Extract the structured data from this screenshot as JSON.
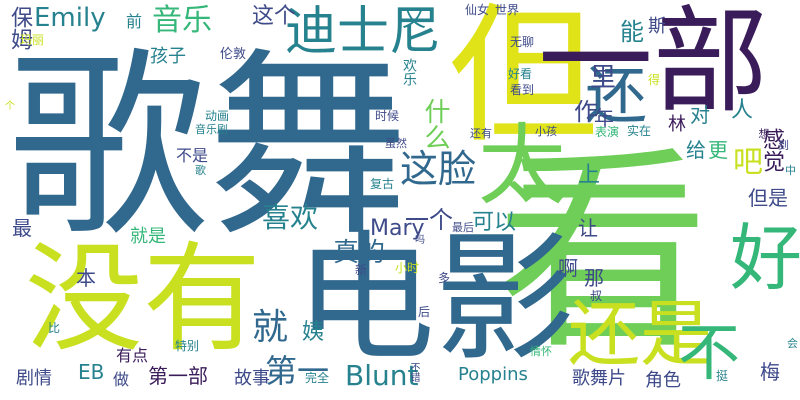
{
  "palette": {
    "purple": "#3b1c5a",
    "indigo": "#3e4a89",
    "blue": "#31688e",
    "teal": "#26828e",
    "green": "#35b779",
    "lime": "#6ece58",
    "yellow": "#c8e020",
    "yellow2": "#dfe318"
  },
  "words": [
    {
      "text": "歌舞",
      "color": "blue"
    },
    {
      "text": "看",
      "color": "lime"
    },
    {
      "text": "电影",
      "color": "blue"
    },
    {
      "text": "没有",
      "color": "yellow"
    },
    {
      "text": "但",
      "color": "yellow2"
    },
    {
      "text": "一部",
      "color": "purple"
    },
    {
      "text": "还",
      "color": "blue"
    },
    {
      "text": "太",
      "color": "lime"
    },
    {
      "text": "好",
      "color": "green"
    },
    {
      "text": "还是",
      "color": "yellow"
    },
    {
      "text": "不",
      "color": "green"
    },
    {
      "text": "就",
      "color": "blue"
    },
    {
      "text": "迪士尼",
      "color": "teal"
    },
    {
      "text": "这脸",
      "color": "blue"
    },
    {
      "text": "Emily",
      "color": "teal"
    },
    {
      "text": "音乐",
      "color": "green"
    },
    {
      "text": "喜欢",
      "color": "teal"
    },
    {
      "text": "真的",
      "color": "blue"
    },
    {
      "text": "Blunt",
      "color": "teal"
    },
    {
      "text": "第一",
      "color": "blue"
    },
    {
      "text": "吧",
      "color": "yellow"
    },
    {
      "text": "这个",
      "color": "indigo"
    },
    {
      "text": "作",
      "color": "indigo"
    },
    {
      "text": "又",
      "color": "teal"
    },
    {
      "text": "能",
      "color": "teal"
    },
    {
      "text": "斯",
      "color": "indigo"
    },
    {
      "text": "什么",
      "color": "lime"
    },
    {
      "text": "里",
      "color": "indigo"
    },
    {
      "text": "对",
      "color": "teal"
    },
    {
      "text": "年",
      "color": "indigo"
    },
    {
      "text": "人",
      "color": "teal"
    },
    {
      "text": "给",
      "color": "teal"
    },
    {
      "text": "更",
      "color": "green"
    },
    {
      "text": "林",
      "color": "purple"
    },
    {
      "text": "上",
      "color": "teal"
    },
    {
      "text": "感觉",
      "color": "purple"
    },
    {
      "text": "但是",
      "color": "indigo"
    },
    {
      "text": "一个",
      "color": "indigo"
    },
    {
      "text": "可以",
      "color": "teal"
    },
    {
      "text": "Mary",
      "color": "indigo"
    },
    {
      "text": "让",
      "color": "indigo"
    },
    {
      "text": "啊",
      "color": "indigo"
    },
    {
      "text": "那",
      "color": "indigo"
    },
    {
      "text": "姨",
      "color": "teal"
    },
    {
      "text": "第一部",
      "color": "purple"
    },
    {
      "text": "EB",
      "color": "teal"
    },
    {
      "text": "故事",
      "color": "indigo"
    },
    {
      "text": "Poppins",
      "color": "teal"
    },
    {
      "text": "歌舞片",
      "color": "indigo"
    },
    {
      "text": "角色",
      "color": "indigo"
    },
    {
      "text": "梅",
      "color": "indigo"
    },
    {
      "text": "剧情",
      "color": "indigo"
    },
    {
      "text": "做",
      "color": "indigo"
    },
    {
      "text": "有点",
      "color": "purple"
    },
    {
      "text": "就是",
      "color": "green"
    },
    {
      "text": "不是",
      "color": "indigo"
    },
    {
      "text": "最",
      "color": "indigo"
    },
    {
      "text": "本",
      "color": "indigo"
    },
    {
      "text": "保姆",
      "color": "indigo"
    },
    {
      "text": "孩子",
      "color": "teal"
    },
    {
      "text": "前",
      "color": "teal"
    },
    {
      "text": "伦敦",
      "color": "indigo"
    },
    {
      "text": "欢乐",
      "color": "teal"
    },
    {
      "text": "仙女",
      "color": "indigo"
    },
    {
      "text": "世界",
      "color": "indigo"
    },
    {
      "text": "无聊",
      "color": "indigo"
    },
    {
      "text": "好看",
      "color": "teal"
    },
    {
      "text": "看到",
      "color": "indigo"
    },
    {
      "text": "得",
      "color": "yellow"
    },
    {
      "text": "想",
      "color": "purple"
    },
    {
      "text": "时候",
      "color": "indigo"
    },
    {
      "text": "动画",
      "color": "teal"
    },
    {
      "text": "音乐剧",
      "color": "teal"
    },
    {
      "text": "歌",
      "color": "teal"
    },
    {
      "text": "虽然",
      "color": "indigo"
    },
    {
      "text": "还有",
      "color": "indigo"
    },
    {
      "text": "小孩",
      "color": "indigo"
    },
    {
      "text": "表演",
      "color": "green"
    },
    {
      "text": "实在",
      "color": "teal"
    },
    {
      "text": "中",
      "color": "teal"
    },
    {
      "text": "到",
      "color": "indigo"
    },
    {
      "text": "复古",
      "color": "teal"
    },
    {
      "text": "最后",
      "color": "indigo"
    },
    {
      "text": "吗",
      "color": "indigo"
    },
    {
      "text": "新",
      "color": "indigo"
    },
    {
      "text": "小时",
      "color": "yellow"
    },
    {
      "text": "多",
      "color": "indigo"
    },
    {
      "text": "后",
      "color": "indigo"
    },
    {
      "text": "比",
      "color": "teal"
    },
    {
      "text": "特别",
      "color": "teal"
    },
    {
      "text": "完全",
      "color": "teal"
    },
    {
      "text": "不错",
      "color": "indigo"
    },
    {
      "text": "情怀",
      "color": "green"
    },
    {
      "text": "挺",
      "color": "teal"
    },
    {
      "text": "叔",
      "color": "indigo"
    },
    {
      "text": "会",
      "color": "teal"
    },
    {
      "text": "玛丽",
      "color": "yellow"
    },
    {
      "text": "个",
      "color": "yellow"
    }
  ]
}
